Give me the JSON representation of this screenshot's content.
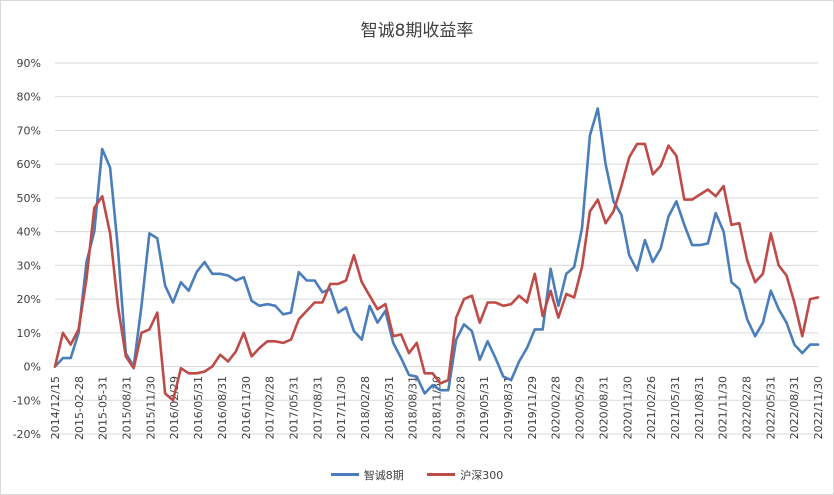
{
  "chart_data": {
    "type": "line",
    "title": "智诚8期收益率",
    "ylim": [
      -20,
      90
    ],
    "yticks": [
      -20,
      -10,
      0,
      10,
      20,
      30,
      40,
      50,
      60,
      70,
      80,
      90
    ],
    "ytick_labels": [
      "-20%",
      "-10%",
      "0%",
      "10%",
      "20%",
      "30%",
      "40%",
      "50%",
      "60%",
      "70%",
      "80%",
      "90%"
    ],
    "grid": true,
    "legend": "bottom",
    "x_tick_labels": [
      "2014/12/15",
      "2015-02-28",
      "2015-05-31",
      "2015/08/31",
      "2015/11/30",
      "2016/02/29",
      "2016/05/31",
      "2016/08/31",
      "2016/11/30",
      "2017/02/28",
      "2017/05/31",
      "2017/08/31",
      "2017/11/30",
      "2018/02/28",
      "2018/05/31",
      "2018/08/31",
      "2018/11/30",
      "2019/02/28",
      "2019/05/31",
      "2019/08/31",
      "2019/11/29",
      "2020/02/28",
      "2020/05/29",
      "2020/08/31",
      "2020/11/30",
      "2021/02/26",
      "2021/05/31",
      "2021/08/31",
      "2021/11/30",
      "2022/02/28",
      "2022/05/31",
      "2022/08/31",
      "2022/11/30"
    ],
    "series": [
      {
        "name": "智诚8期",
        "color": "#4a7ebb",
        "values": [
          0,
          2.5,
          2.5,
          10,
          31,
          40,
          64.5,
          59,
          35,
          4,
          0,
          18,
          39.5,
          38,
          24,
          19,
          25,
          22.5,
          28,
          31,
          27.5,
          27.5,
          27,
          25.5,
          26.5,
          19.5,
          18,
          18.5,
          18,
          15.5,
          16,
          28,
          25.5,
          25.5,
          22,
          23,
          16,
          17.5,
          10.5,
          8,
          18,
          13,
          16.5,
          7,
          2.5,
          -2.5,
          -3,
          -8,
          -5.5,
          -7,
          -7,
          8,
          12.5,
          10.5,
          2,
          7.5,
          2.5,
          -3,
          -4,
          1.5,
          5.5,
          11,
          11,
          29,
          18,
          27.5,
          29.5,
          41,
          68.5,
          76.5,
          60,
          49,
          45,
          33,
          28.5,
          37.5,
          31,
          35,
          44.5,
          49,
          42,
          36,
          36,
          36.5,
          45.5,
          40,
          25,
          23,
          14,
          9,
          13,
          22.5,
          17,
          13,
          6.5,
          4,
          6.5,
          6.5
        ]
      },
      {
        "name": "沪深300",
        "color": "#be4b48",
        "values": [
          0,
          10,
          6.5,
          11,
          26,
          47,
          50.5,
          39.5,
          18,
          3,
          -0.5,
          10,
          11,
          16,
          -8,
          -10,
          -0.5,
          -2,
          -2,
          -1.5,
          0,
          3.5,
          1.5,
          4.5,
          10,
          3,
          5.5,
          7.5,
          7.5,
          7,
          8,
          14,
          16.5,
          19,
          19,
          24.5,
          24.5,
          25.5,
          33,
          25,
          21,
          17,
          18.5,
          9,
          9.5,
          4,
          7,
          -2,
          -2,
          -5,
          -4,
          14.5,
          20,
          21,
          13,
          19,
          19,
          18,
          18.5,
          21,
          19,
          27.5,
          15,
          22.5,
          14.5,
          21.5,
          20.5,
          29.5,
          46,
          49.5,
          42.5,
          46,
          53.5,
          62,
          66,
          66,
          57,
          59.5,
          65.5,
          62.5,
          49.5,
          49.5,
          51,
          52.5,
          50.5,
          53.5,
          42,
          42.5,
          31.5,
          25,
          27.5,
          39.5,
          30,
          27,
          19,
          9,
          20,
          20.5
        ]
      }
    ]
  }
}
